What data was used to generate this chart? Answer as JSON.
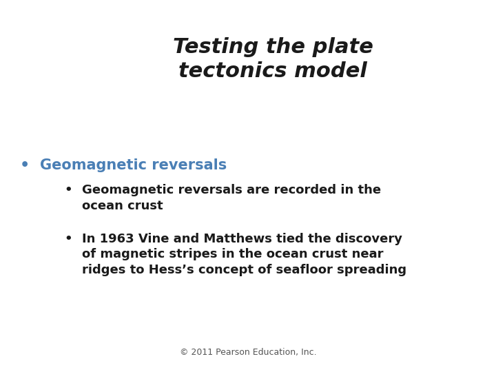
{
  "title_line1": "Testing the plate",
  "title_line2": "tectonics model",
  "title_color": "#1a1a1a",
  "title_fontsize": 22,
  "title_fontstyle": "italic",
  "title_fontweight": "bold",
  "bullet1_text": "Geomagnetic reversals",
  "bullet1_color": "#4a7fb5",
  "bullet1_fontsize": 15,
  "bullet2a_line1": "Geomagnetic reversals are recorded in the",
  "bullet2a_line2": "ocean crust",
  "bullet2b_line1": "In 1963 Vine and Matthews tied the discovery",
  "bullet2b_line2": "of magnetic stripes in the ocean crust near",
  "bullet2b_line3": "ridges to Hess’s concept of seafloor spreading",
  "sub_bullet_color": "#1a1a1a",
  "sub_bullet_fontsize": 13,
  "footer_text": "© 2011 Pearson Education, Inc.",
  "footer_color": "#555555",
  "footer_fontsize": 9,
  "background_color": "#ffffff"
}
